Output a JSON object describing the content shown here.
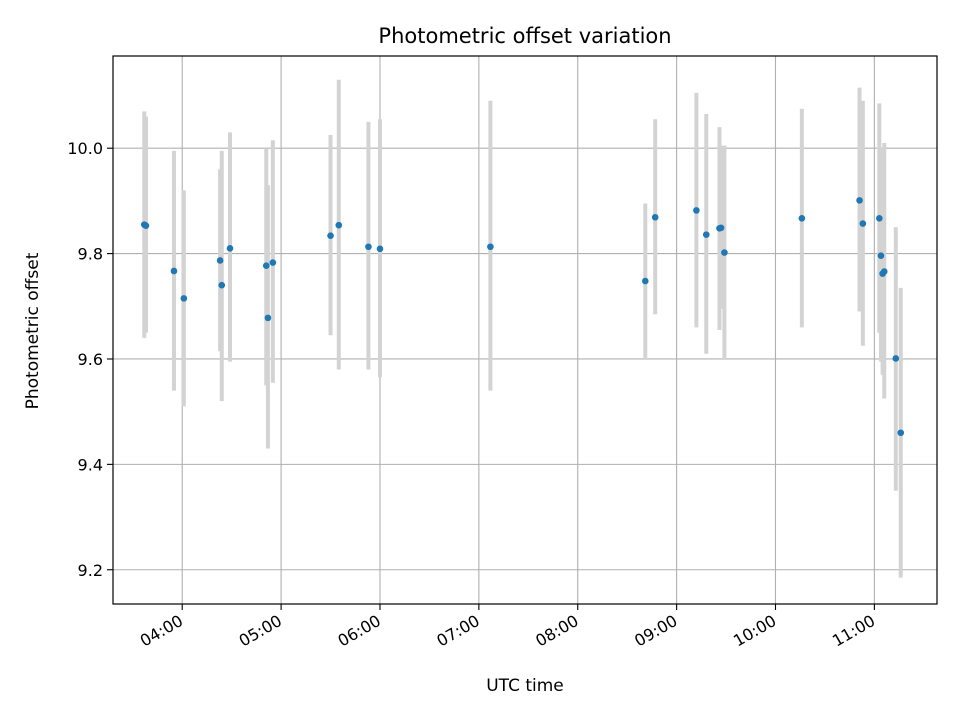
{
  "chart_data": {
    "type": "scatter",
    "title": "Photometric offset variation",
    "xlabel": "UTC time",
    "ylabel": "Photometric offset",
    "xlim": [
      "03:18",
      "11:38"
    ],
    "ylim": [
      9.135,
      10.175
    ],
    "x_ticks": [
      "04:00",
      "05:00",
      "06:00",
      "07:00",
      "08:00",
      "09:00",
      "10:00",
      "11:00"
    ],
    "y_ticks": [
      9.2,
      9.4,
      9.6,
      9.8,
      10.0
    ],
    "grid": true,
    "colors": {
      "point": "#1f77b4",
      "errorbar": "#d3d3d3",
      "grid": "#b0b0b0"
    },
    "points": [
      {
        "x": "03:37",
        "y": 9.855,
        "y_low": 9.64,
        "y_high": 10.07
      },
      {
        "x": "03:38",
        "y": 9.853,
        "y_low": 9.65,
        "y_high": 10.06
      },
      {
        "x": "03:55",
        "y": 9.767,
        "y_low": 9.54,
        "y_high": 9.995
      },
      {
        "x": "04:01",
        "y": 9.715,
        "y_low": 9.51,
        "y_high": 9.92
      },
      {
        "x": "04:23",
        "y": 9.787,
        "y_low": 9.615,
        "y_high": 9.96
      },
      {
        "x": "04:24",
        "y": 9.74,
        "y_low": 9.52,
        "y_high": 9.995
      },
      {
        "x": "04:29",
        "y": 9.81,
        "y_low": 9.595,
        "y_high": 10.03
      },
      {
        "x": "04:51",
        "y": 9.777,
        "y_low": 9.55,
        "y_high": 10.0
      },
      {
        "x": "04:52",
        "y": 9.678,
        "y_low": 9.43,
        "y_high": 9.93
      },
      {
        "x": "04:55",
        "y": 9.783,
        "y_low": 9.555,
        "y_high": 10.015
      },
      {
        "x": "05:30",
        "y": 9.834,
        "y_low": 9.645,
        "y_high": 10.025
      },
      {
        "x": "05:35",
        "y": 9.854,
        "y_low": 9.58,
        "y_high": 10.13
      },
      {
        "x": "05:53",
        "y": 9.813,
        "y_low": 9.58,
        "y_high": 10.05
      },
      {
        "x": "06:00",
        "y": 9.809,
        "y_low": 9.565,
        "y_high": 10.055
      },
      {
        "x": "07:07",
        "y": 9.813,
        "y_low": 9.54,
        "y_high": 10.09
      },
      {
        "x": "08:41",
        "y": 9.748,
        "y_low": 9.6,
        "y_high": 9.895
      },
      {
        "x": "08:47",
        "y": 9.869,
        "y_low": 9.685,
        "y_high": 10.055
      },
      {
        "x": "09:12",
        "y": 9.882,
        "y_low": 9.66,
        "y_high": 10.105
      },
      {
        "x": "09:18",
        "y": 9.836,
        "y_low": 9.61,
        "y_high": 10.065
      },
      {
        "x": "09:26",
        "y": 9.848,
        "y_low": 9.655,
        "y_high": 10.04
      },
      {
        "x": "09:27",
        "y": 9.849,
        "y_low": 9.695,
        "y_high": 10.005
      },
      {
        "x": "09:29",
        "y": 9.802,
        "y_low": 9.6,
        "y_high": 10.005
      },
      {
        "x": "10:16",
        "y": 9.867,
        "y_low": 9.66,
        "y_high": 10.075
      },
      {
        "x": "10:51",
        "y": 9.901,
        "y_low": 9.69,
        "y_high": 10.115
      },
      {
        "x": "10:53",
        "y": 9.857,
        "y_low": 9.625,
        "y_high": 10.09
      },
      {
        "x": "11:03",
        "y": 9.867,
        "y_low": 9.65,
        "y_high": 10.085
      },
      {
        "x": "11:04",
        "y": 9.796,
        "y_low": 9.595,
        "y_high": 10.0
      },
      {
        "x": "11:05",
        "y": 9.762,
        "y_low": 9.57,
        "y_high": 9.955
      },
      {
        "x": "11:06",
        "y": 9.766,
        "y_low": 9.525,
        "y_high": 10.01
      },
      {
        "x": "11:13",
        "y": 9.601,
        "y_low": 9.35,
        "y_high": 9.85
      },
      {
        "x": "11:16",
        "y": 9.46,
        "y_low": 9.185,
        "y_high": 9.735
      }
    ]
  }
}
